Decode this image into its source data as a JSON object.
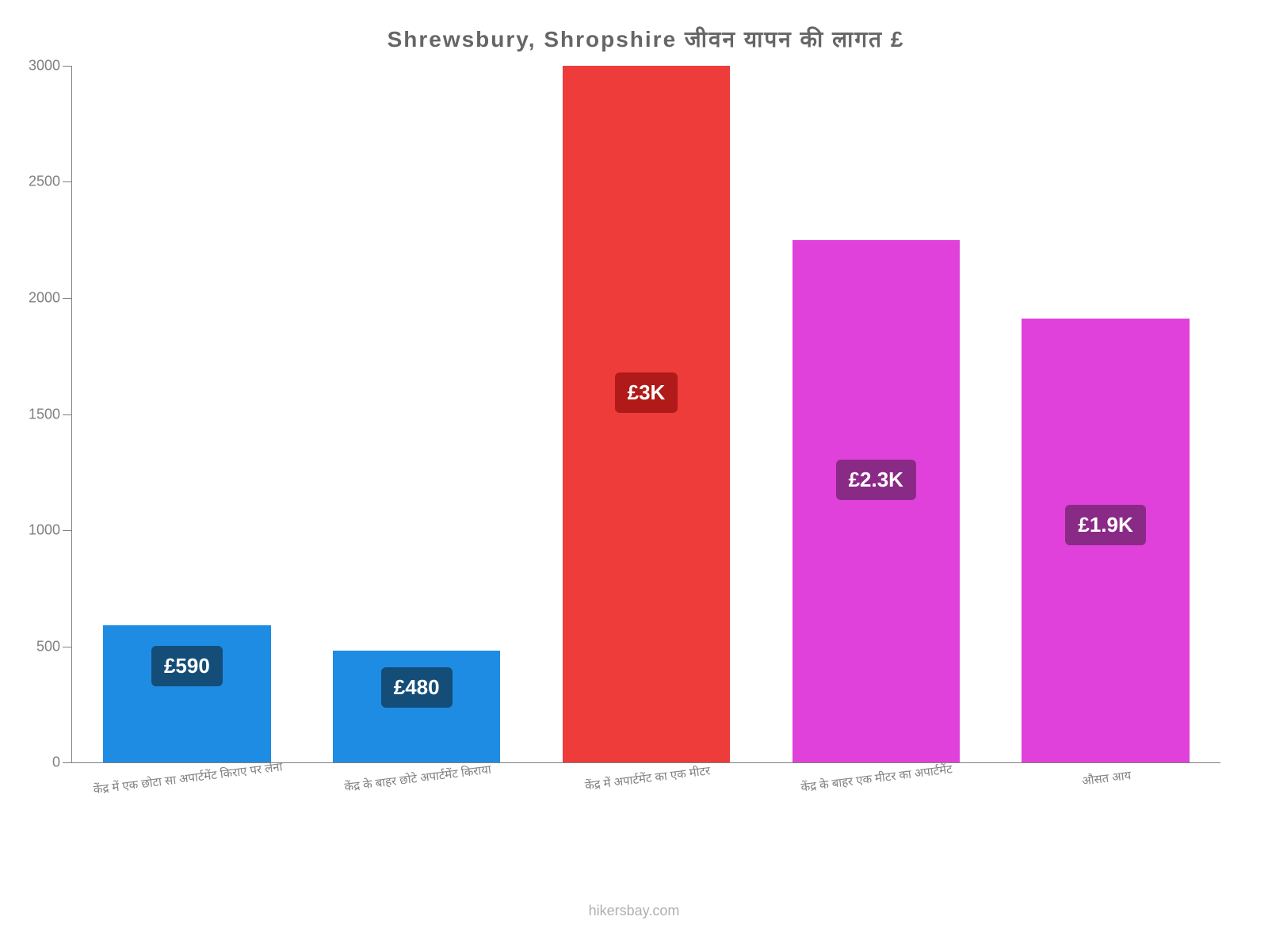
{
  "chart": {
    "type": "bar",
    "title": "Shrewsbury, Shropshire जीवन  यापन  की  लागत  £",
    "title_fontsize": 28,
    "title_color": "#666666",
    "background_color": "#ffffff",
    "axis_color": "#808080",
    "ylim": [
      0,
      3000
    ],
    "yticks": [
      0,
      500,
      1000,
      1500,
      2000,
      2500,
      3000
    ],
    "ytick_labels": [
      "0",
      "500",
      "1000",
      "1500",
      "2000",
      "2500",
      "3000"
    ],
    "label_fontsize": 18,
    "label_color": "#808080",
    "bar_width_ratio": 0.73,
    "bars": [
      {
        "label": "केंद्र में एक छोटा सा अपार्टमेंट किराए पर लेना",
        "value": 590,
        "display_value": "£590",
        "bar_color": "#1f8ce4",
        "badge_color": "#144d78"
      },
      {
        "label": "केंद्र के बाहर छोटे अपार्टमेंट किराया",
        "value": 480,
        "display_value": "£480",
        "bar_color": "#1f8ce4",
        "badge_color": "#144d78"
      },
      {
        "label": "केंद्र में अपार्टमेंट का एक मीटर",
        "value": 3000,
        "display_value": "£3K",
        "bar_color": "#ee3c3a",
        "badge_color": "#b01a18"
      },
      {
        "label": "केंद्र के बाहर एक मीटर का अपार्टमेंट",
        "value": 2250,
        "display_value": "£2.3K",
        "bar_color": "#e041da",
        "badge_color": "#8a2a87"
      },
      {
        "label": "औसत आय",
        "value": 1910,
        "display_value": "£1.9K",
        "bar_color": "#e041da",
        "badge_color": "#8a2a87"
      }
    ],
    "x_label_fontsize": 15,
    "x_label_rotation": -7,
    "badge_fontsize": 26,
    "badge_text_color": "#ffffff",
    "badge_border_radius": 6,
    "watermark": "hikersbay.com",
    "watermark_color": "#b0b0b0",
    "watermark_fontsize": 18
  }
}
